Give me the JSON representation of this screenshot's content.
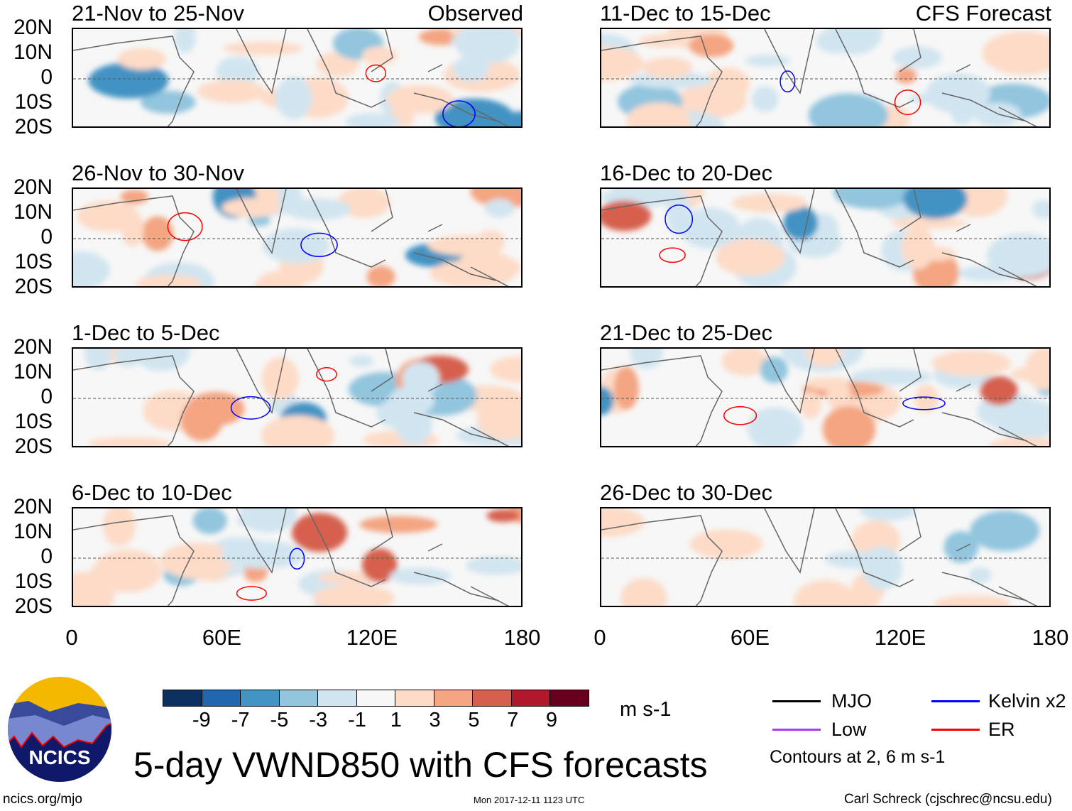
{
  "panels_left": [
    {
      "title": "21-Nov to 25-Nov",
      "label": "Observed"
    },
    {
      "title": "26-Nov to 30-Nov"
    },
    {
      "title": "1-Dec to 5-Dec"
    },
    {
      "title": "6-Dec to 10-Dec"
    }
  ],
  "panels_right": [
    {
      "title": "11-Dec to 15-Dec",
      "label": "CFS Forecast"
    },
    {
      "title": "16-Dec to 20-Dec"
    },
    {
      "title": "21-Dec to 25-Dec"
    },
    {
      "title": "26-Dec to 30-Dec"
    }
  ],
  "lat_labels": [
    "20N",
    "10N",
    "0",
    "10S",
    "20S"
  ],
  "lon_labels": [
    "0",
    "60E",
    "120E",
    "180"
  ],
  "colorbar": {
    "labels": [
      "-9",
      "-7",
      "-5",
      "-3",
      "-1",
      "1",
      "3",
      "5",
      "7",
      "9"
    ],
    "colors": [
      "#0a3160",
      "#2266ad",
      "#4393c3",
      "#92c5de",
      "#d1e5f0",
      "#f7f7f7",
      "#fddbc7",
      "#f4a582",
      "#d6604d",
      "#b2182b",
      "#67001f"
    ],
    "units": "m s-1"
  },
  "legend": {
    "items": [
      {
        "label": "MJO",
        "color": "#000000"
      },
      {
        "label": "Kelvin x2",
        "color": "#0000ff"
      },
      {
        "label": "Low",
        "color": "#a040f0"
      },
      {
        "label": "ER",
        "color": "#ff0000"
      }
    ],
    "note": "Contours at 2, 6 m s-1"
  },
  "logo_text": "NCICS",
  "title": "5-day VWND850 with CFS forecasts",
  "footer": {
    "left": "ncics.org/mjo",
    "center": "Mon 2017-12-11 1123 UTC",
    "right": "Carl Schreck (cjschrec@ncsu.edu)"
  }
}
